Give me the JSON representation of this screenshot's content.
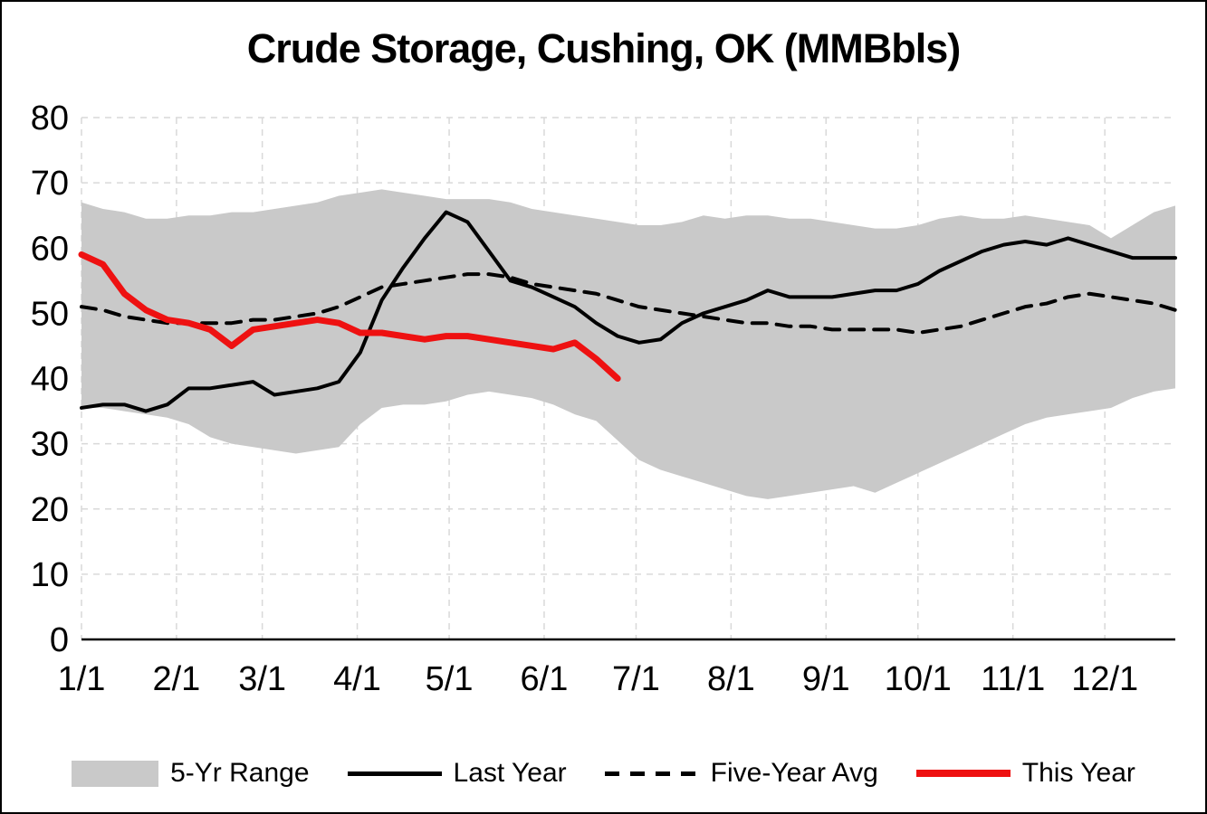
{
  "chart_data": {
    "type": "line",
    "title": "Crude Storage, Cushing, OK (MMBbls)",
    "grid": true,
    "grid_color": "#d9d9d9",
    "legend_position": "bottom",
    "axes": {
      "xlim": [
        1,
        358
      ],
      "ylim": [
        0,
        80
      ],
      "yticks": [
        0,
        10,
        20,
        30,
        40,
        50,
        60,
        70,
        80
      ],
      "xtick_days": [
        1,
        32,
        60,
        91,
        121,
        152,
        182,
        213,
        244,
        274,
        305,
        335
      ],
      "xtick_labels": [
        "1/1",
        "2/1",
        "3/1",
        "4/1",
        "5/1",
        "6/1",
        "7/1",
        "8/1",
        "9/1",
        "10/1",
        "11/1",
        "12/1"
      ]
    },
    "band": {
      "name": "5-Yr Range",
      "color": "#c9c9c9",
      "days": [
        1,
        8,
        15,
        22,
        29,
        36,
        43,
        50,
        57,
        64,
        71,
        78,
        85,
        92,
        99,
        106,
        113,
        120,
        127,
        134,
        141,
        148,
        155,
        162,
        169,
        176,
        183,
        190,
        197,
        204,
        211,
        218,
        225,
        232,
        239,
        246,
        253,
        260,
        267,
        274,
        281,
        288,
        295,
        302,
        309,
        316,
        323,
        330,
        337,
        344,
        351,
        358
      ],
      "upper": [
        67,
        66,
        65.5,
        64.5,
        64.5,
        65,
        65,
        65.5,
        65.5,
        66,
        66.5,
        67,
        68,
        68.5,
        69,
        68.5,
        68,
        67.5,
        67.5,
        67.5,
        67,
        66,
        65.5,
        65,
        64.5,
        64,
        63.5,
        63.5,
        64,
        65,
        64.5,
        65,
        65,
        64.5,
        64.5,
        64,
        63.5,
        63,
        63,
        63.5,
        64.5,
        65,
        64.5,
        64.5,
        65,
        64.5,
        64,
        63.5,
        61.5,
        63.5,
        65.5,
        66.5
      ],
      "lower": [
        35.5,
        35.5,
        35,
        34.5,
        34,
        33,
        31,
        30,
        29.5,
        29,
        28.5,
        29,
        29.5,
        33,
        35.5,
        36,
        36,
        36.5,
        37.5,
        38,
        37.5,
        37,
        36,
        34.5,
        33.5,
        30.5,
        27.5,
        26,
        25,
        24,
        23,
        22,
        21.5,
        22,
        22.5,
        23,
        23.5,
        22.5,
        24,
        25.5,
        27,
        28.5,
        30,
        31.5,
        33,
        34,
        34.5,
        35,
        35.5,
        37,
        38,
        38.5
      ]
    },
    "series": [
      {
        "name": "Last Year",
        "color": "#000000",
        "style": "solid",
        "width": 4,
        "days": [
          1,
          8,
          15,
          22,
          29,
          36,
          43,
          50,
          57,
          64,
          71,
          78,
          85,
          92,
          99,
          106,
          113,
          120,
          127,
          134,
          141,
          148,
          155,
          162,
          169,
          176,
          183,
          190,
          197,
          204,
          211,
          218,
          225,
          232,
          239,
          246,
          253,
          260,
          267,
          274,
          281,
          288,
          295,
          302,
          309,
          316,
          323,
          330,
          337,
          344,
          351,
          358
        ],
        "values": [
          35.5,
          36,
          36,
          35,
          36,
          38.5,
          38.5,
          39,
          39.5,
          37.5,
          38,
          38.5,
          39.5,
          44,
          52,
          57,
          61.5,
          65.5,
          64,
          59.5,
          55,
          54,
          52.5,
          51,
          48.5,
          46.5,
          45.5,
          46,
          48.5,
          50,
          51,
          52,
          53.5,
          52.5,
          52.5,
          52.5,
          53,
          53.5,
          53.5,
          54.5,
          56.5,
          58,
          59.5,
          60.5,
          61,
          60.5,
          61.5,
          60.5,
          59.5,
          58.5,
          58.5,
          58.5
        ]
      },
      {
        "name": "Five-Year Avg",
        "color": "#000000",
        "style": "dashed",
        "dash": "16 11",
        "width": 4,
        "days": [
          1,
          8,
          15,
          22,
          29,
          36,
          43,
          50,
          57,
          64,
          71,
          78,
          85,
          92,
          99,
          106,
          113,
          120,
          127,
          134,
          141,
          148,
          155,
          162,
          169,
          176,
          183,
          190,
          197,
          204,
          211,
          218,
          225,
          232,
          239,
          246,
          253,
          260,
          267,
          274,
          281,
          288,
          295,
          302,
          309,
          316,
          323,
          330,
          337,
          344,
          351,
          358
        ],
        "values": [
          51,
          50.5,
          49.5,
          49,
          48.5,
          48.5,
          48.5,
          48.5,
          49,
          49,
          49.5,
          50,
          51,
          52.5,
          54,
          54.5,
          55,
          55.5,
          56,
          56,
          55.5,
          54.5,
          54,
          53.5,
          53,
          52,
          51,
          50.5,
          50,
          49.5,
          49,
          48.5,
          48.5,
          48,
          48,
          47.5,
          47.5,
          47.5,
          47.5,
          47,
          47.5,
          48,
          49,
          50,
          51,
          51.5,
          52.5,
          53,
          52.5,
          52,
          51.5,
          50.5
        ]
      },
      {
        "name": "This Year",
        "color": "#ee1111",
        "style": "solid",
        "width": 7,
        "days": [
          1,
          8,
          15,
          22,
          29,
          36,
          43,
          50,
          57,
          64,
          71,
          78,
          85,
          92,
          99,
          106,
          113,
          120,
          127,
          134,
          141,
          148,
          155,
          162,
          169,
          176
        ],
        "values": [
          59,
          57.5,
          53,
          50.5,
          49,
          48.5,
          47.5,
          45,
          47.5,
          48,
          48.5,
          49,
          48.5,
          47,
          47,
          46.5,
          46,
          46.5,
          46.5,
          46,
          45.5,
          45,
          44.5,
          45.5,
          43,
          40
        ]
      }
    ]
  }
}
